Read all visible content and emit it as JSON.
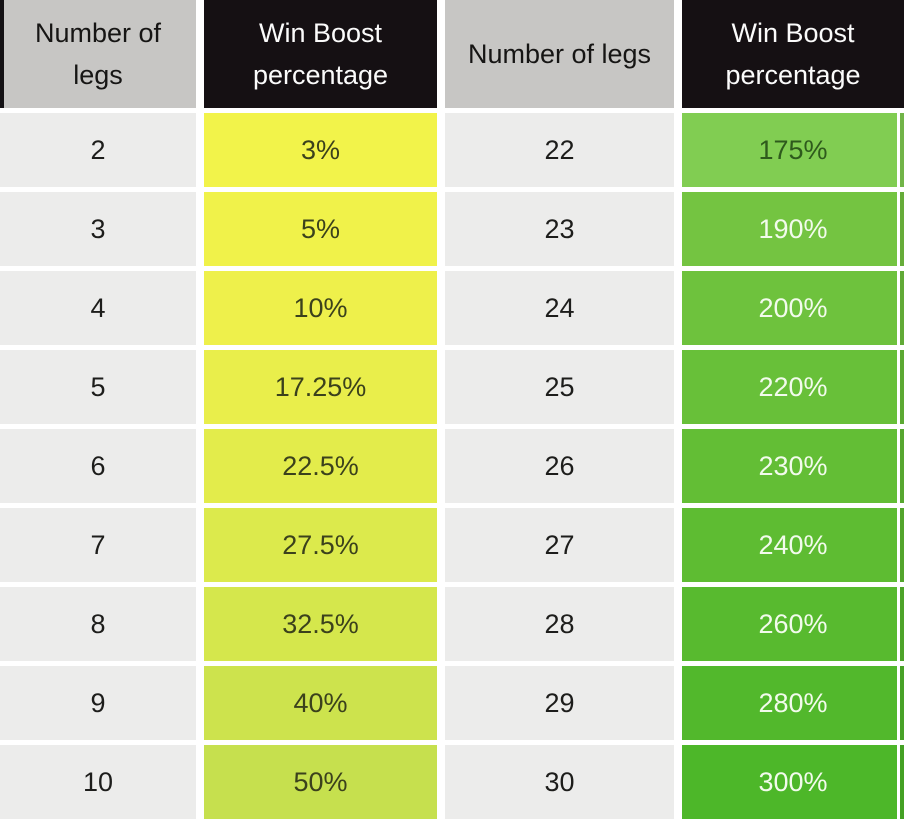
{
  "chart_data": {
    "type": "table",
    "columns": [
      "Number of legs",
      "Win Boost percentage",
      "Number of legs",
      "Win Boost percentage"
    ],
    "rows": [
      [
        "2",
        "3%",
        "22",
        "175%"
      ],
      [
        "3",
        "5%",
        "23",
        "190%"
      ],
      [
        "4",
        "10%",
        "24",
        "200%"
      ],
      [
        "5",
        "17.25%",
        "25",
        "220%"
      ],
      [
        "6",
        "22.5%",
        "26",
        "230%"
      ],
      [
        "7",
        "27.5%",
        "27",
        "240%"
      ],
      [
        "8",
        "32.5%",
        "28",
        "260%"
      ],
      [
        "9",
        "40%",
        "29",
        "280%"
      ],
      [
        "10",
        "50%",
        "30",
        "300%"
      ]
    ],
    "notes": "last row partially cut off at bottom of screenshot"
  },
  "style": {
    "header_gray_bg": "#c7c6c4",
    "header_black_bg": "#151013",
    "legs_cell_bg": "#ececeb",
    "left_boost_bg": [
      "#f2f34a",
      "#f0f24a",
      "#eef04b",
      "#e9ee4b",
      "#e3ec4b",
      "#dcea4c",
      "#d5e74c",
      "#cde34d",
      "#c6e04e"
    ],
    "left_boost_fg": "#3b411c",
    "right_boost_bg": [
      "#81cd52",
      "#74c441",
      "#6ec23d",
      "#68c039",
      "#63be35",
      "#5ebc32",
      "#58ba2f",
      "#52b82c",
      "#4db729"
    ],
    "right_boost_fg_first": "#2e5a1c",
    "right_boost_fg": "#f2fbec"
  }
}
